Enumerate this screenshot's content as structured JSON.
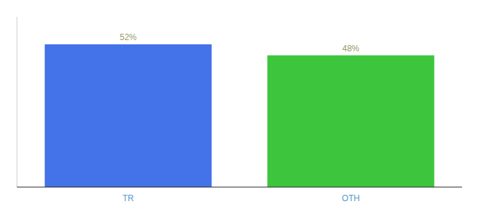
{
  "chart_data": {
    "type": "bar",
    "categories": [
      "TR",
      "OTH"
    ],
    "values": [
      52,
      48
    ],
    "value_labels": [
      "52%",
      "48%"
    ],
    "colors": [
      "#4472e8",
      "#3dc63d"
    ],
    "ylim": [
      0,
      62
    ],
    "data_labels": true,
    "tick_labels": "x",
    "grid": false
  }
}
